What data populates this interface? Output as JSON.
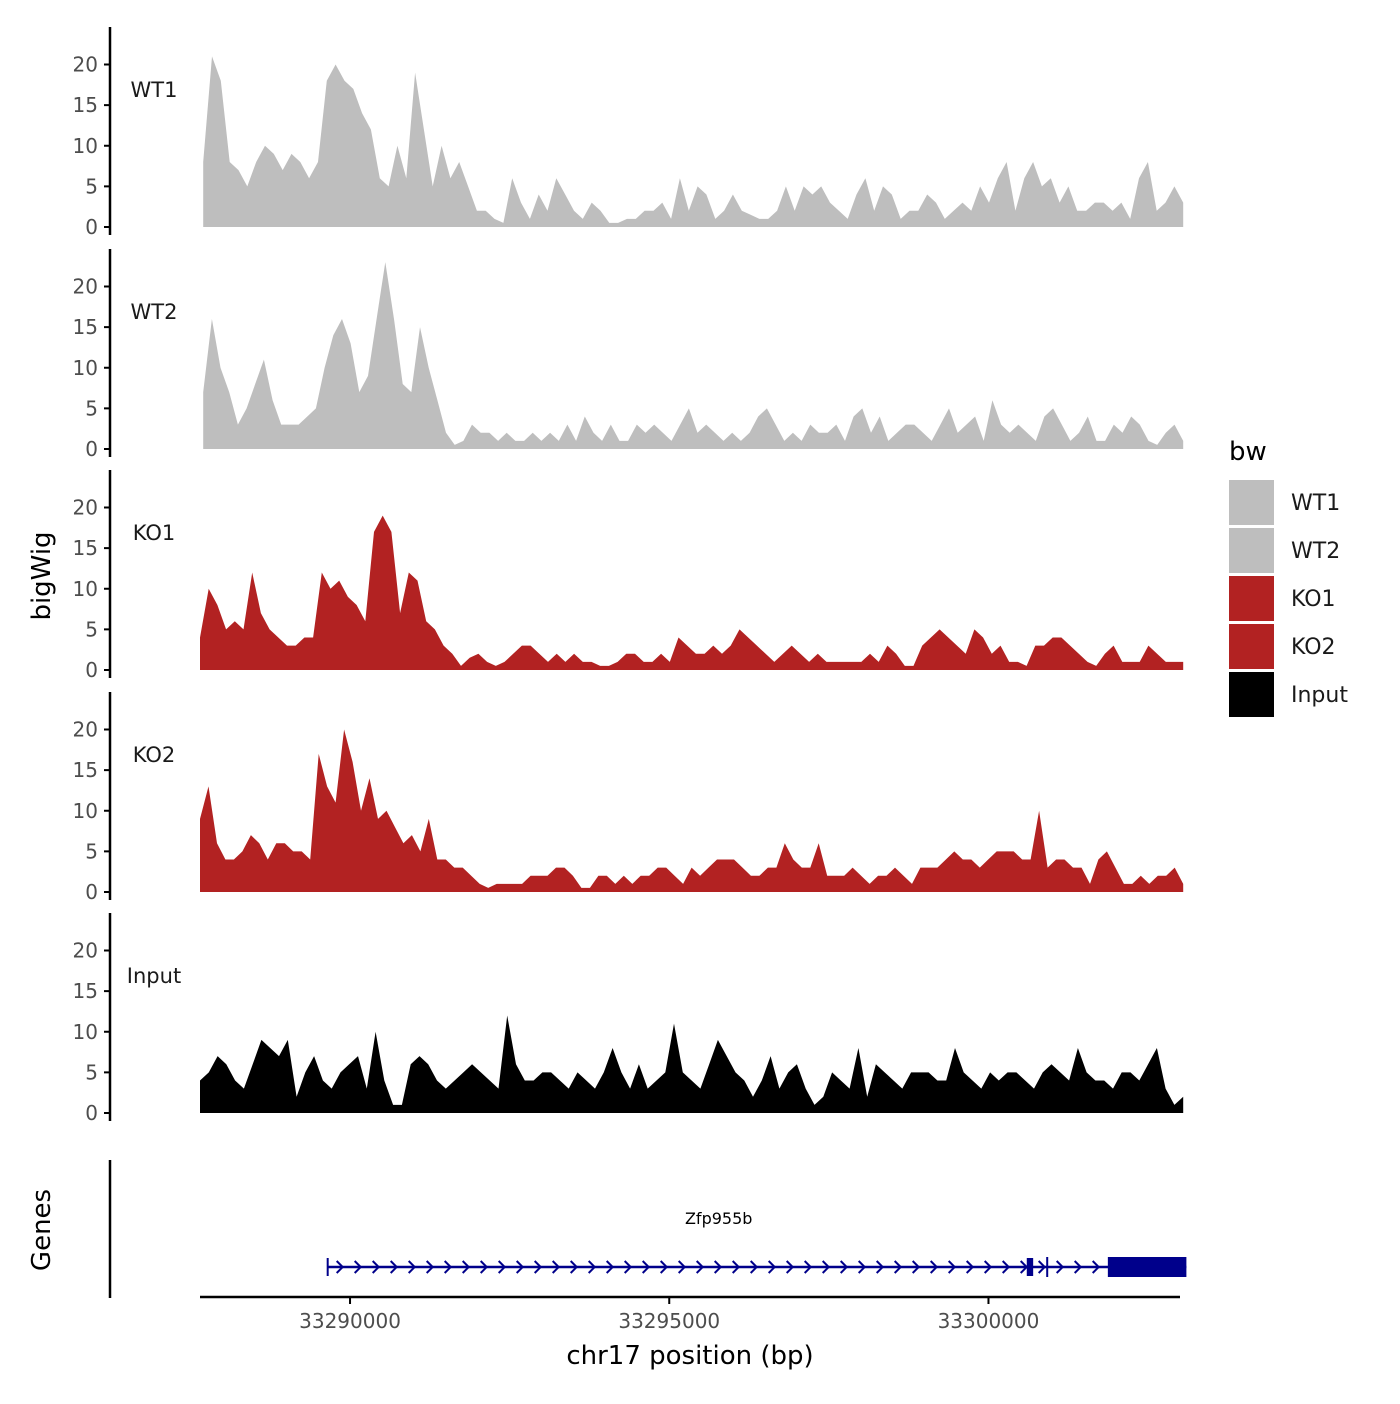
{
  "chart_data": {
    "type": "area",
    "title": "",
    "ylabel": "bigWig",
    "xlabel": "chr17 position (bp)",
    "xlim": [
      33287650,
      33303000
    ],
    "ylim": [
      0,
      24
    ],
    "y_ticks": [
      "0",
      "5",
      "10",
      "15",
      "20"
    ],
    "x_ticks": [
      {
        "value": 33290000,
        "label": "33290000"
      },
      {
        "value": 33295000,
        "label": "33295000"
      },
      {
        "value": 33300000,
        "label": "33300000"
      }
    ],
    "colors": {
      "WT1": "#bebebe",
      "WT2": "#bebebe",
      "KO1": "#b22222",
      "KO2": "#b22222",
      "Input": "#000000",
      "gene": "#00008b"
    },
    "series": [
      {
        "name": "WT1",
        "color": "#bebebe",
        "x_start": 33287700,
        "x_end": 33303050,
        "values": [
          8,
          21,
          18,
          8,
          7,
          5,
          8,
          10,
          9,
          7,
          9,
          8,
          6,
          8,
          18,
          20,
          18,
          17,
          14,
          12,
          6,
          5,
          10,
          6,
          19,
          12,
          5,
          10,
          6,
          8,
          5,
          2,
          2,
          1,
          0.5,
          6,
          3,
          1,
          4,
          2,
          6,
          4,
          2,
          1,
          3,
          2,
          0.5,
          0.5,
          1,
          1,
          2,
          2,
          3,
          1,
          6,
          2,
          5,
          4,
          1,
          2,
          4,
          2,
          1.5,
          1,
          1,
          2,
          5,
          2,
          5,
          4,
          5,
          3,
          2,
          1,
          4,
          6,
          2,
          5,
          4,
          1,
          2,
          2,
          4,
          3,
          1,
          2,
          3,
          2,
          5,
          3,
          6,
          8,
          2,
          6,
          8,
          5,
          6,
          3,
          5,
          2,
          2,
          3,
          3,
          2,
          3,
          1,
          6,
          8,
          2,
          3,
          5,
          3
        ]
      },
      {
        "name": "WT2",
        "color": "#bebebe",
        "x_start": 33287700,
        "x_end": 33303050,
        "values": [
          7,
          16,
          10,
          7,
          3,
          5,
          8,
          11,
          6,
          3,
          3,
          3,
          4,
          5,
          10,
          14,
          16,
          13,
          7,
          9,
          16,
          23,
          16,
          8,
          7,
          15,
          10,
          6,
          2,
          0.5,
          1,
          3,
          2,
          2,
          1,
          2,
          1,
          1,
          2,
          1,
          2,
          1,
          3,
          1,
          4,
          2,
          1,
          3,
          1,
          1,
          3,
          2,
          3,
          2,
          1,
          3,
          5,
          2,
          3,
          2,
          1,
          2,
          1,
          2,
          4,
          5,
          3,
          1,
          2,
          1,
          3,
          2,
          2,
          3,
          1,
          4,
          5,
          2,
          4,
          1,
          2,
          3,
          3,
          2,
          1,
          3,
          5,
          2,
          3,
          4,
          1,
          6,
          3,
          2,
          3,
          2,
          1,
          4,
          5,
          3,
          1,
          2,
          4,
          1,
          1,
          3,
          2,
          4,
          3,
          1,
          0.5,
          2,
          3,
          1
        ]
      },
      {
        "name": "KO1",
        "color": "#b22222",
        "x_start": 33287650,
        "x_end": 33303050,
        "values": [
          4,
          10,
          8,
          5,
          6,
          5,
          12,
          7,
          5,
          4,
          3,
          3,
          4,
          4,
          12,
          10,
          11,
          9,
          8,
          6,
          17,
          19,
          17,
          7,
          12,
          11,
          6,
          5,
          3,
          2,
          0.5,
          1.5,
          2,
          1,
          0.5,
          1,
          2,
          3,
          3,
          2,
          1,
          2,
          1,
          2,
          1,
          1,
          0.5,
          0.5,
          1,
          2,
          2,
          1,
          1,
          2,
          1,
          4,
          3,
          2,
          2,
          3,
          2,
          3,
          5,
          4,
          3,
          2,
          1,
          2,
          3,
          2,
          1,
          2,
          1,
          1,
          1,
          1,
          1,
          2,
          1,
          3,
          2,
          0.5,
          0.5,
          3,
          4,
          5,
          4,
          3,
          2,
          5,
          4,
          2,
          3,
          1,
          1,
          0.5,
          3,
          3,
          4,
          4,
          3,
          2,
          1,
          0.5,
          2,
          3,
          1,
          1,
          1,
          3,
          2,
          1,
          1,
          1
        ]
      },
      {
        "name": "KO2",
        "color": "#b22222",
        "x_start": 33287650,
        "x_end": 33303050,
        "values": [
          9,
          13,
          6,
          4,
          4,
          5,
          7,
          6,
          4,
          6,
          6,
          5,
          5,
          4,
          17,
          13,
          11,
          20,
          16,
          10,
          14,
          9,
          10,
          8,
          6,
          7,
          5,
          9,
          4,
          4,
          3,
          3,
          2,
          1,
          0.5,
          1,
          1,
          1,
          1,
          2,
          2,
          2,
          3,
          3,
          2,
          0.5,
          0.5,
          2,
          2,
          1,
          2,
          1,
          2,
          2,
          3,
          3,
          2,
          1,
          3,
          2,
          3,
          4,
          4,
          4,
          3,
          2,
          2,
          3,
          3,
          6,
          4,
          3,
          3,
          6,
          2,
          2,
          2,
          3,
          2,
          1,
          2,
          2,
          3,
          2,
          1,
          3,
          3,
          3,
          4,
          5,
          4,
          4,
          3,
          4,
          5,
          5,
          5,
          4,
          4,
          10,
          3,
          4,
          4,
          3,
          3,
          1,
          4,
          5,
          3,
          1,
          1,
          2,
          1,
          2,
          2,
          3,
          1
        ]
      },
      {
        "name": "Input",
        "color": "#000000",
        "x_start": 33287650,
        "x_end": 33303050,
        "values": [
          4,
          5,
          7,
          6,
          4,
          3,
          6,
          9,
          8,
          7,
          9,
          2,
          5,
          7,
          4,
          3,
          5,
          6,
          7,
          3,
          10,
          4,
          1,
          1,
          6,
          7,
          6,
          4,
          3,
          4,
          5,
          6,
          5,
          4,
          3,
          12,
          6,
          4,
          4,
          5,
          5,
          4,
          3,
          5,
          4,
          3,
          5,
          8,
          5,
          3,
          6,
          3,
          4,
          5,
          11,
          5,
          4,
          3,
          6,
          9,
          7,
          5,
          4,
          2,
          4,
          7,
          3,
          5,
          6,
          3,
          1,
          2,
          5,
          4,
          3,
          8,
          2,
          6,
          5,
          4,
          3,
          5,
          5,
          5,
          4,
          4,
          8,
          5,
          4,
          3,
          5,
          4,
          5,
          5,
          4,
          3,
          5,
          6,
          5,
          4,
          8,
          5,
          4,
          4,
          3,
          5,
          5,
          4,
          6,
          8,
          3,
          1,
          2
        ]
      }
    ],
    "tracks": [
      "WT1",
      "WT2",
      "KO1",
      "KO2",
      "Input"
    ],
    "legend": {
      "title": "bw",
      "position": "right",
      "entries": [
        "WT1",
        "WT2",
        "KO1",
        "KO2",
        "Input"
      ]
    },
    "genes_panel": {
      "label": "Genes",
      "gene": "Zfp955b",
      "strand": "+",
      "start": 33289650,
      "end": 33303100,
      "exons": [
        [
          33300600,
          33300700
        ],
        [
          33301870,
          33303100
        ]
      ]
    }
  }
}
